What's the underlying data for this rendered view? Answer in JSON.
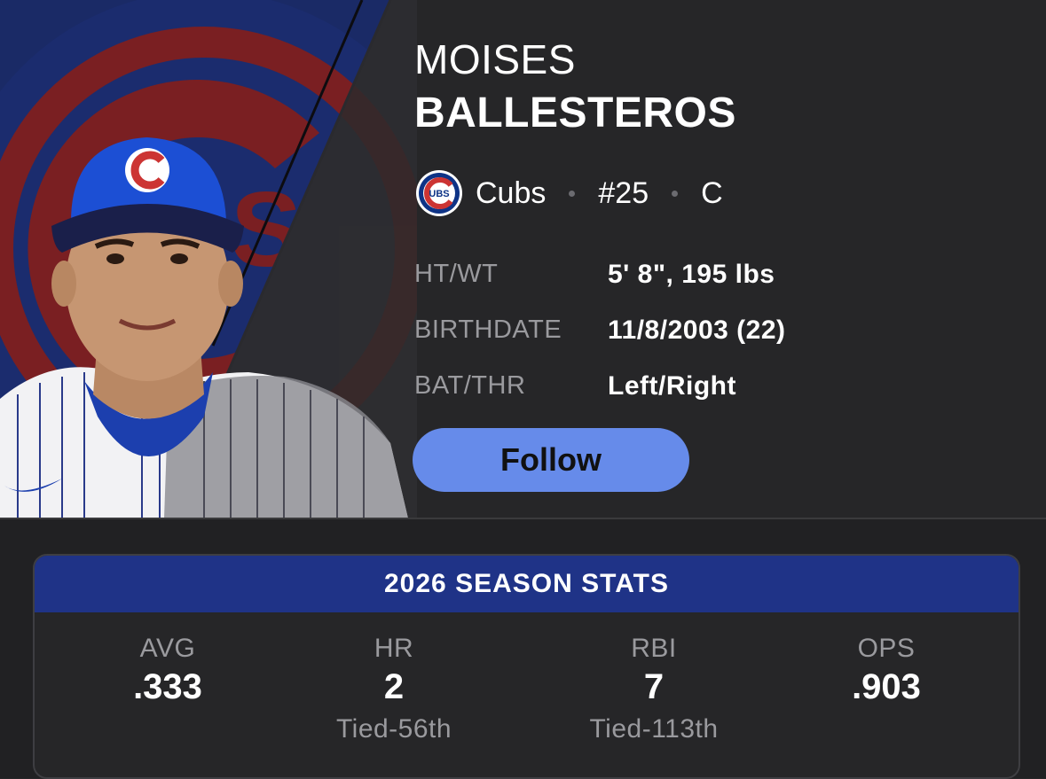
{
  "player": {
    "first_name": "MOISES",
    "last_name": "BALLESTEROS",
    "team": "Cubs",
    "number": "#25",
    "position": "C",
    "team_logo_text": "UBS"
  },
  "info": [
    {
      "label": "HT/WT",
      "value": "5' 8\", 195 lbs"
    },
    {
      "label": "BIRTHDATE",
      "value": "11/8/2003 (22)"
    },
    {
      "label": "BAT/THR",
      "value": "Left/Right"
    }
  ],
  "follow_label": "Follow",
  "stats": {
    "title": "2026 SEASON STATS",
    "items": [
      {
        "label": "AVG",
        "value": ".333",
        "rank": ""
      },
      {
        "label": "HR",
        "value": "2",
        "rank": "Tied-56th"
      },
      {
        "label": "RBI",
        "value": "7",
        "rank": "Tied-113th"
      },
      {
        "label": "OPS",
        "value": ".903",
        "rank": ""
      }
    ]
  },
  "colors": {
    "background": "#262628",
    "accent_blue": "#1f3387",
    "follow_button": "#668bea",
    "cubs_red": "#cc3433",
    "cubs_blue": "#0e3386"
  }
}
